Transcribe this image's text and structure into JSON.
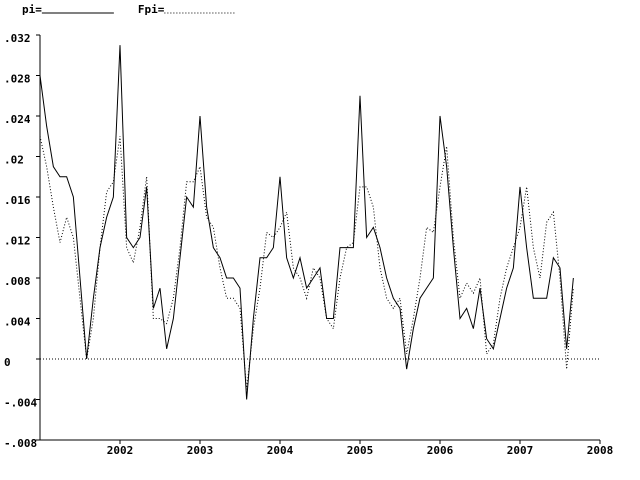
{
  "chart_data": {
    "type": "line",
    "x": [
      2001,
      2001.083,
      2001.167,
      2001.25,
      2001.333,
      2001.417,
      2001.5,
      2001.583,
      2001.667,
      2001.75,
      2001.833,
      2001.917,
      2002,
      2002.083,
      2002.167,
      2002.25,
      2002.333,
      2002.417,
      2002.5,
      2002.583,
      2002.667,
      2002.75,
      2002.833,
      2002.917,
      2003,
      2003.083,
      2003.167,
      2003.25,
      2003.333,
      2003.417,
      2003.5,
      2003.583,
      2003.667,
      2003.75,
      2003.833,
      2003.917,
      2004,
      2004.083,
      2004.167,
      2004.25,
      2004.333,
      2004.417,
      2004.5,
      2004.583,
      2004.667,
      2004.75,
      2004.833,
      2004.917,
      2005,
      2005.083,
      2005.167,
      2005.25,
      2005.333,
      2005.417,
      2005.5,
      2005.583,
      2005.667,
      2005.75,
      2005.833,
      2005.917,
      2006,
      2006.083,
      2006.167,
      2006.25,
      2006.333,
      2006.417,
      2006.5,
      2006.583,
      2006.667,
      2006.75,
      2006.833,
      2006.917,
      2007,
      2007.083,
      2007.167,
      2007.25,
      2007.333,
      2007.417,
      2007.5,
      2007.583,
      2007.667
    ],
    "series": [
      {
        "name": "pi=",
        "color": "#000000",
        "style": "solid",
        "values": [
          0.028,
          0.023,
          0.019,
          0.018,
          0.018,
          0.016,
          0.008,
          0.0,
          0.006,
          0.011,
          0.014,
          0.016,
          0.031,
          0.012,
          0.011,
          0.012,
          0.017,
          0.005,
          0.007,
          0.001,
          0.004,
          0.01,
          0.016,
          0.015,
          0.024,
          0.015,
          0.011,
          0.01,
          0.008,
          0.008,
          0.007,
          -0.004,
          0.004,
          0.01,
          0.01,
          0.011,
          0.018,
          0.01,
          0.008,
          0.01,
          0.007,
          0.008,
          0.009,
          0.004,
          0.004,
          0.011,
          0.011,
          0.011,
          0.026,
          0.012,
          0.013,
          0.011,
          0.008,
          0.006,
          0.005,
          -0.001,
          0.003,
          0.006,
          0.007,
          0.008,
          0.024,
          0.019,
          0.011,
          0.004,
          0.005,
          0.003,
          0.007,
          0.002,
          0.001,
          0.004,
          0.007,
          0.009,
          0.017,
          0.011,
          0.006,
          0.006,
          0.006,
          0.01,
          0.009,
          0.001,
          0.008
        ]
      },
      {
        "name": "Fpi=",
        "color": "#000000",
        "style": "dotted",
        "values": [
          0.022,
          0.019,
          0.015,
          0.0115,
          0.014,
          0.012,
          0.006,
          0.0,
          0.004,
          0.011,
          0.0165,
          0.0175,
          0.022,
          0.011,
          0.0095,
          0.013,
          0.018,
          0.004,
          0.004,
          0.0035,
          0.006,
          0.011,
          0.0175,
          0.0175,
          0.019,
          0.014,
          0.013,
          0.009,
          0.006,
          0.006,
          0.005,
          -0.003,
          0.003,
          0.007,
          0.0125,
          0.012,
          0.013,
          0.0145,
          0.009,
          0.008,
          0.006,
          0.009,
          0.008,
          0.004,
          0.003,
          0.008,
          0.011,
          0.0115,
          0.017,
          0.017,
          0.015,
          0.009,
          0.006,
          0.005,
          0.006,
          0.0005,
          0.004,
          0.008,
          0.013,
          0.0125,
          0.017,
          0.021,
          0.012,
          0.006,
          0.0075,
          0.0065,
          0.008,
          0.0005,
          0.0015,
          0.006,
          0.009,
          0.011,
          0.013,
          0.017,
          0.011,
          0.008,
          0.0135,
          0.0145,
          0.008,
          -0.001,
          0.007
        ]
      }
    ],
    "xlim": [
      2001,
      2008
    ],
    "xticks": [
      2002,
      2003,
      2004,
      2005,
      2006,
      2007,
      2008
    ],
    "ylim": [
      -0.008,
      0.032
    ],
    "yticks": [
      {
        "value": -0.008,
        "label": "-.008"
      },
      {
        "value": -0.004,
        "label": "-.004"
      },
      0,
      {
        "value": 0.004,
        "label": ".004"
      },
      {
        "value": 0.008,
        "label": ".008"
      },
      {
        "value": 0.012,
        "label": ".012"
      },
      {
        "value": 0.016,
        "label": ".016"
      },
      {
        "value": 0.02,
        "label": ".02"
      },
      {
        "value": 0.024,
        "label": ".024"
      },
      {
        "value": 0.028,
        "label": ".028"
      },
      {
        "value": 0.032,
        "label": ".032"
      }
    ],
    "hline": 0
  }
}
